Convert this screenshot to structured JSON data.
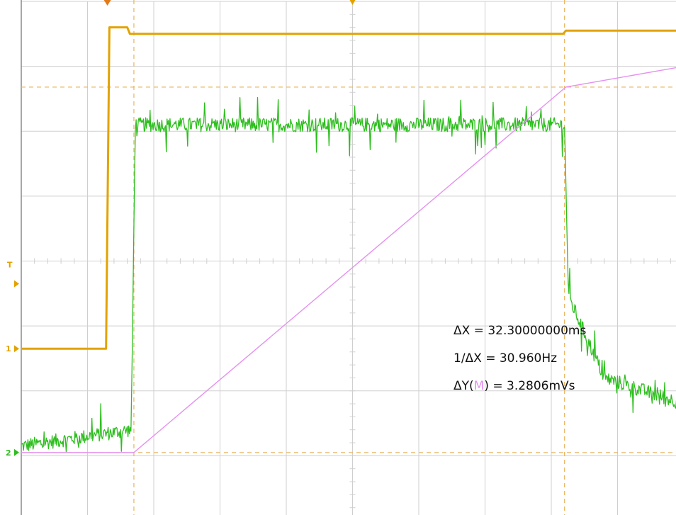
{
  "chart_data": {
    "type": "line",
    "instrument": "oscilloscope",
    "grid": true,
    "divisions": {
      "horizontal": 10,
      "vertical": 8
    },
    "x_range_div": [
      0,
      10
    ],
    "y_range_div": [
      -4,
      4
    ],
    "colors": {
      "ch1": "#e2a300",
      "ch2": "#2dbe1e",
      "math": "#e590f0",
      "grid": "#cfcfcf",
      "cursor_x": "#e9b35a",
      "cursor_y": "#e9b35a",
      "text": "#111111"
    },
    "markers": {
      "ch1_label": "1",
      "ch2_label": "2",
      "trigger_label": "T"
    },
    "series": [
      {
        "channel": "1",
        "units": "div",
        "description_points": [
          [
            0,
            -1.35
          ],
          [
            1.28,
            -1.35
          ],
          [
            1.33,
            3.6
          ],
          [
            1.6,
            3.6
          ],
          [
            1.64,
            3.5
          ],
          [
            8.18,
            3.5
          ],
          [
            8.22,
            3.55
          ],
          [
            10,
            3.55
          ]
        ]
      },
      {
        "channel": "2",
        "units": "div",
        "description_points": [
          [
            0,
            -2.85
          ],
          [
            1.66,
            -2.6
          ],
          [
            1.72,
            2.1
          ],
          [
            8.2,
            2.1
          ],
          [
            8.26,
            -0.55
          ],
          [
            8.8,
            -1.8
          ],
          [
            10,
            -2.2
          ]
        ]
      },
      {
        "channel": "M",
        "units": "div",
        "description_points": [
          [
            0,
            -2.95
          ],
          [
            1.7,
            -2.95
          ],
          [
            8.22,
            2.68
          ],
          [
            10,
            3.0
          ]
        ]
      }
    ],
    "cursors": {
      "x": [
        1.7,
        8.2
      ],
      "y": [
        -2.95,
        2.68
      ]
    },
    "readout": [
      "ΔX = 32.30000000ms",
      "1/ΔX = 30.960Hz",
      {
        "prefix": "ΔY(",
        "channel": "M",
        "suffix": ") = 3.2806mVs"
      }
    ]
  }
}
